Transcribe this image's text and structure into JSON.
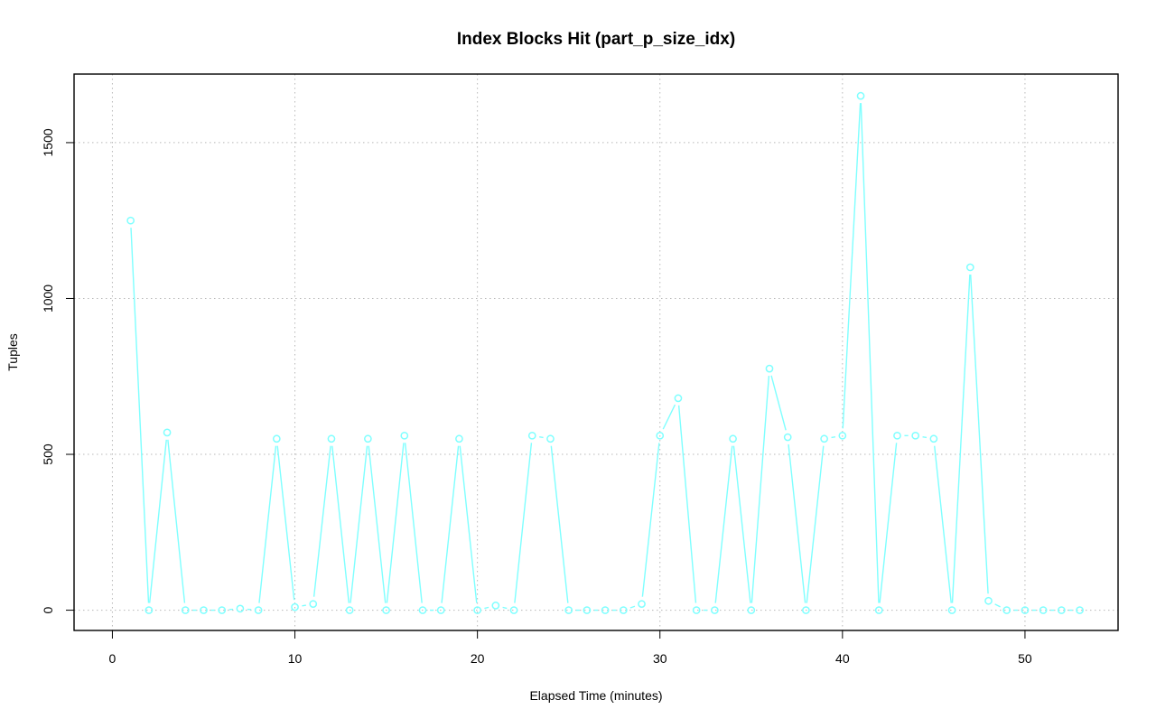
{
  "chart_data": {
    "type": "line",
    "title": "Index Blocks Hit (part_p_size_idx)",
    "xlabel": "Elapsed Time (minutes)",
    "ylabel": "Tuples",
    "xlim": [
      -2.1,
      55.1
    ],
    "ylim": [
      -65,
      1720
    ],
    "x_ticks": [
      0,
      10,
      20,
      30,
      40,
      50
    ],
    "y_ticks": [
      0,
      500,
      1000,
      1500
    ],
    "grid": true,
    "legend": "none",
    "marker": "open-circle",
    "series": [
      {
        "color": "#7fffff",
        "x": [
          1,
          2,
          3,
          4,
          5,
          6,
          7,
          8,
          9,
          10,
          11,
          12,
          13,
          14,
          15,
          16,
          17,
          18,
          19,
          20,
          21,
          22,
          23,
          24,
          25,
          26,
          27,
          28,
          29,
          30,
          31,
          32,
          33,
          34,
          35,
          36,
          37,
          38,
          39,
          40,
          41,
          42,
          43,
          44,
          45,
          46,
          47,
          48,
          49,
          50,
          51,
          52,
          53
        ],
        "y": [
          1250,
          0,
          570,
          0,
          0,
          0,
          5,
          0,
          550,
          10,
          20,
          550,
          0,
          550,
          0,
          560,
          0,
          0,
          550,
          0,
          15,
          0,
          560,
          550,
          0,
          0,
          0,
          0,
          20,
          560,
          680,
          0,
          0,
          550,
          0,
          775,
          555,
          0,
          550,
          560,
          1650,
          0,
          560,
          560,
          550,
          0,
          1100,
          30,
          0,
          0,
          0,
          0,
          0
        ]
      }
    ]
  }
}
